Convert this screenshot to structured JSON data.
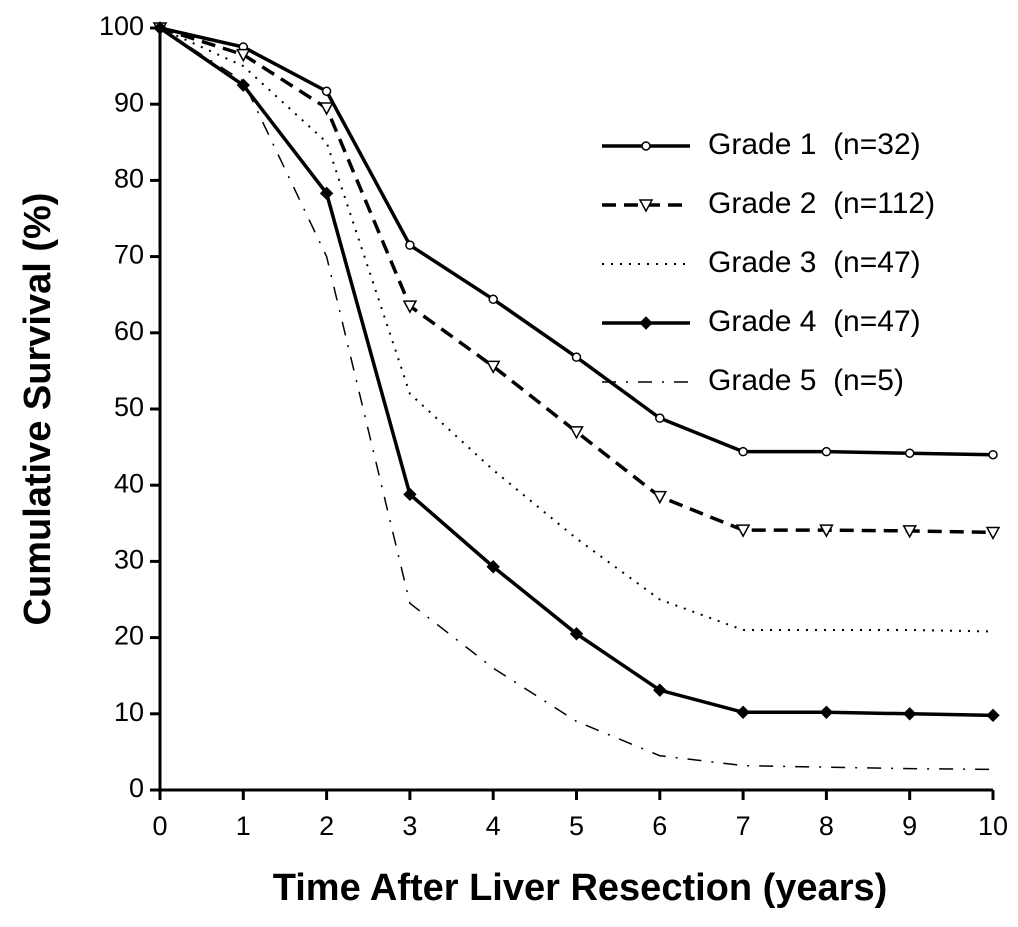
{
  "chart_data": {
    "type": "line",
    "xlabel": "Time After Liver Resection (years)",
    "ylabel": "Cumulative Survival (%)",
    "x": [
      0,
      1,
      2,
      3,
      4,
      5,
      6,
      7,
      8,
      9,
      10
    ],
    "series": [
      {
        "name": "Grade 1  (n=32)",
        "color": "#000000",
        "dash": "solid",
        "marker": "circle",
        "values": [
          100,
          97.5,
          91.7,
          71.5,
          64.4,
          56.8,
          48.8,
          44.4,
          44.4,
          44.2,
          44
        ]
      },
      {
        "name": "Grade 2  (n=112)",
        "color": "#000000",
        "dash": "dashed",
        "marker": "triangle-down",
        "values": [
          100,
          96.5,
          89.5,
          63.5,
          55.6,
          47,
          38.5,
          34.1,
          34.1,
          34,
          33.8
        ]
      },
      {
        "name": "Grade 3  (n=47)",
        "color": "#000000",
        "dash": "dotted",
        "values": [
          100,
          95,
          85,
          52,
          42,
          33,
          25,
          21,
          21,
          21,
          20.8
        ]
      },
      {
        "name": "Grade 4  (n=47)",
        "color": "#000000",
        "dash": "solid",
        "marker": "diamond",
        "values": [
          100,
          92.5,
          78.3,
          38.8,
          29.3,
          20.5,
          13.1,
          10.2,
          10.2,
          10,
          9.8
        ]
      },
      {
        "name": "Grade 5  (n=5)",
        "color": "#000000",
        "dash": "dashdot",
        "values": [
          100,
          93,
          70,
          24.5,
          16,
          9,
          4.5,
          3.2,
          3,
          2.8,
          2.7
        ]
      }
    ],
    "xlim": [
      0,
      10
    ],
    "xticks": [
      0,
      1,
      2,
      3,
      4,
      5,
      6,
      7,
      8,
      9,
      10
    ],
    "ylim": [
      0,
      100
    ],
    "yticks": [
      0,
      10,
      20,
      30,
      40,
      50,
      60,
      70,
      80,
      90,
      100
    ],
    "grid": false,
    "legend": "upper right"
  }
}
